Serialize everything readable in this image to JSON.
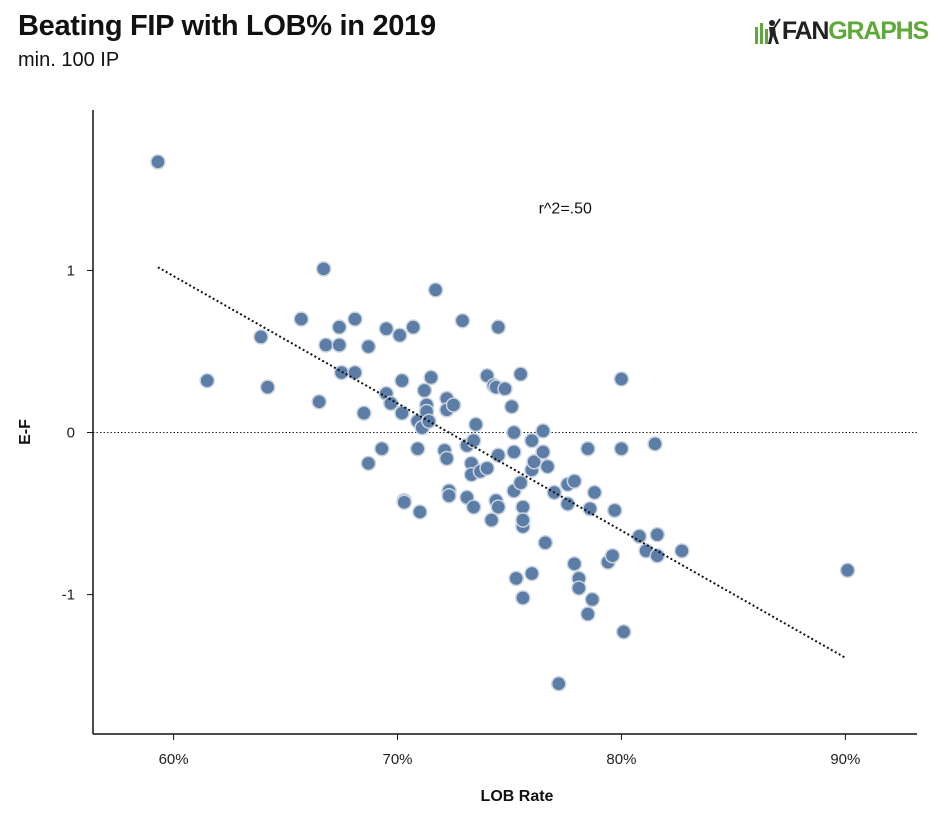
{
  "header": {
    "title": "Beating FIP with LOB% in 2019",
    "subtitle": "min. 100 IP",
    "logo_fan": "FAN",
    "logo_graphs": "GRAPHS",
    "logo_icon": "batter-icon"
  },
  "colors": {
    "point_fill": "#5b7da6",
    "point_stroke": "#c9d3df",
    "trend": "#111111",
    "brand_green": "#5fa93b"
  },
  "chart_data": {
    "type": "scatter",
    "title": "Beating FIP with LOB% in 2019",
    "subtitle": "min. 100 IP",
    "xlabel": "LOB Rate",
    "ylabel": "E-F",
    "xlim": [
      0.564,
      0.932
    ],
    "ylim": [
      -1.86,
      1.99
    ],
    "xticks": [
      {
        "value": 0.6,
        "label": "60%"
      },
      {
        "value": 0.7,
        "label": "70%"
      },
      {
        "value": 0.8,
        "label": "80%"
      },
      {
        "value": 0.9,
        "label": "90%"
      }
    ],
    "yticks": [
      {
        "value": 1,
        "label": "1"
      },
      {
        "value": 0,
        "label": "0"
      },
      {
        "value": -1,
        "label": "-1"
      }
    ],
    "grid": false,
    "reference_line_y": 0,
    "trendline": {
      "x1": 0.593,
      "y1": 1.02,
      "x2": 0.9,
      "y2": -1.39
    },
    "annotation": {
      "text": "r^2=.50",
      "x": 0.763,
      "y": 1.35
    },
    "points": [
      [
        0.593,
        1.67
      ],
      [
        0.615,
        0.32
      ],
      [
        0.639,
        0.59
      ],
      [
        0.642,
        0.28
      ],
      [
        0.657,
        0.7
      ],
      [
        0.665,
        0.19
      ],
      [
        0.667,
        1.01
      ],
      [
        0.668,
        0.54
      ],
      [
        0.674,
        0.65
      ],
      [
        0.674,
        0.54
      ],
      [
        0.675,
        0.37
      ],
      [
        0.681,
        0.7
      ],
      [
        0.681,
        0.37
      ],
      [
        0.685,
        0.12
      ],
      [
        0.687,
        -0.19
      ],
      [
        0.687,
        0.53
      ],
      [
        0.693,
        -0.1
      ],
      [
        0.695,
        0.24
      ],
      [
        0.695,
        0.64
      ],
      [
        0.697,
        0.18
      ],
      [
        0.701,
        0.6
      ],
      [
        0.702,
        0.32
      ],
      [
        0.702,
        0.12
      ],
      [
        0.703,
        -0.42
      ],
      [
        0.703,
        -0.43
      ],
      [
        0.707,
        0.65
      ],
      [
        0.709,
        0.07
      ],
      [
        0.709,
        -0.1
      ],
      [
        0.71,
        -0.49
      ],
      [
        0.711,
        0.03
      ],
      [
        0.712,
        0.26
      ],
      [
        0.713,
        0.17
      ],
      [
        0.713,
        0.13
      ],
      [
        0.714,
        0.07
      ],
      [
        0.715,
        0.34
      ],
      [
        0.717,
        0.88
      ],
      [
        0.721,
        -0.11
      ],
      [
        0.722,
        -0.16
      ],
      [
        0.722,
        0.21
      ],
      [
        0.722,
        0.14
      ],
      [
        0.723,
        -0.36
      ],
      [
        0.723,
        -0.39
      ],
      [
        0.725,
        0.17
      ],
      [
        0.729,
        0.69
      ],
      [
        0.731,
        -0.08
      ],
      [
        0.731,
        -0.4
      ],
      [
        0.733,
        -0.19
      ],
      [
        0.733,
        -0.26
      ],
      [
        0.734,
        -0.05
      ],
      [
        0.734,
        -0.46
      ],
      [
        0.735,
        0.05
      ],
      [
        0.737,
        -0.24
      ],
      [
        0.74,
        -0.22
      ],
      [
        0.74,
        0.35
      ],
      [
        0.742,
        -0.54
      ],
      [
        0.743,
        0.29
      ],
      [
        0.744,
        -0.42
      ],
      [
        0.744,
        0.28
      ],
      [
        0.745,
        0.65
      ],
      [
        0.745,
        -0.14
      ],
      [
        0.745,
        -0.46
      ],
      [
        0.748,
        0.27
      ],
      [
        0.751,
        0.16
      ],
      [
        0.752,
        -0.36
      ],
      [
        0.752,
        0.0
      ],
      [
        0.752,
        -0.12
      ],
      [
        0.753,
        -0.9
      ],
      [
        0.755,
        0.36
      ],
      [
        0.755,
        -0.31
      ],
      [
        0.756,
        -1.02
      ],
      [
        0.756,
        -0.46
      ],
      [
        0.756,
        -0.58
      ],
      [
        0.756,
        -0.54
      ],
      [
        0.76,
        -0.87
      ],
      [
        0.76,
        -0.23
      ],
      [
        0.76,
        -0.05
      ],
      [
        0.761,
        -0.18
      ],
      [
        0.765,
        0.01
      ],
      [
        0.765,
        -0.12
      ],
      [
        0.766,
        -0.68
      ],
      [
        0.767,
        -0.21
      ],
      [
        0.77,
        -0.37
      ],
      [
        0.772,
        -1.55
      ],
      [
        0.776,
        -0.44
      ],
      [
        0.776,
        -0.32
      ],
      [
        0.779,
        -0.3
      ],
      [
        0.779,
        -0.81
      ],
      [
        0.781,
        -0.9
      ],
      [
        0.781,
        -0.96
      ],
      [
        0.785,
        -0.1
      ],
      [
        0.785,
        -1.12
      ],
      [
        0.786,
        -0.47
      ],
      [
        0.787,
        -1.03
      ],
      [
        0.788,
        -0.37
      ],
      [
        0.794,
        -0.8
      ],
      [
        0.796,
        -0.76
      ],
      [
        0.797,
        -0.48
      ],
      [
        0.8,
        0.33
      ],
      [
        0.8,
        -0.1
      ],
      [
        0.801,
        -1.23
      ],
      [
        0.808,
        -0.64
      ],
      [
        0.811,
        -0.73
      ],
      [
        0.815,
        -0.07
      ],
      [
        0.816,
        -0.63
      ],
      [
        0.816,
        -0.76
      ],
      [
        0.827,
        -0.73
      ],
      [
        0.901,
        -0.85
      ]
    ]
  }
}
